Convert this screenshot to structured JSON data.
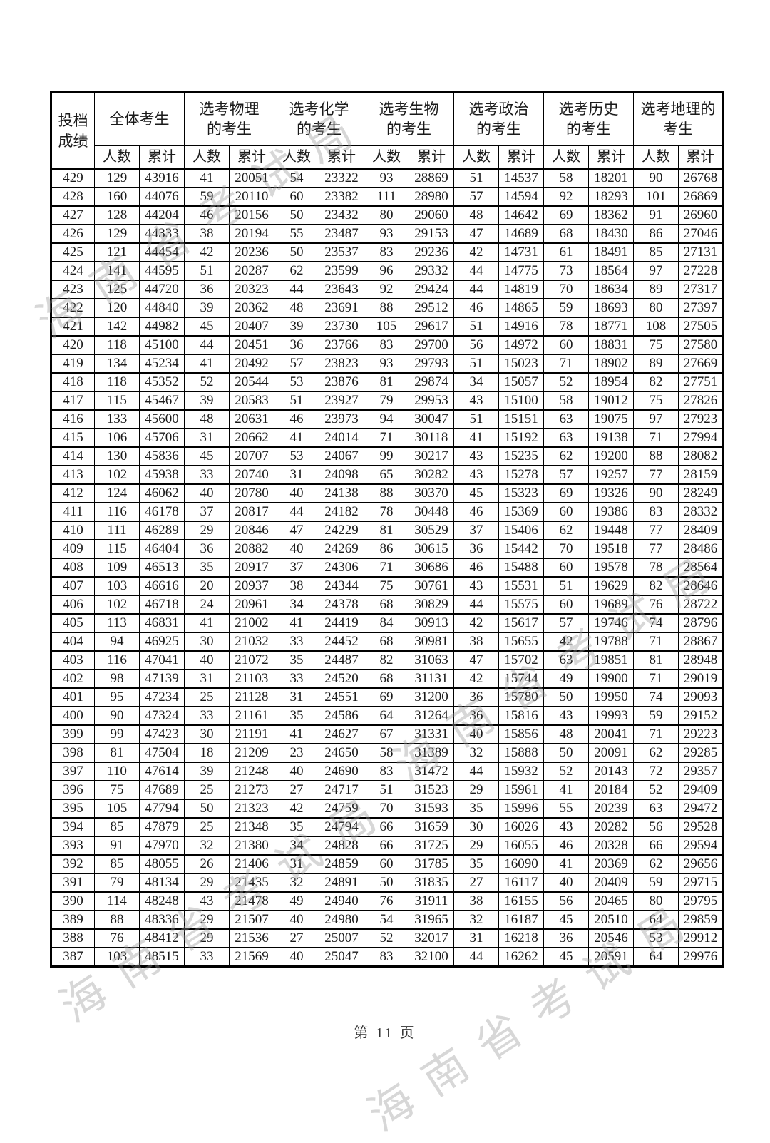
{
  "table": {
    "score_header": "投档\n成绩",
    "groups": [
      {
        "id": "all",
        "label": "全体考生"
      },
      {
        "id": "physics",
        "label": "选考物理\n的考生"
      },
      {
        "id": "chemistry",
        "label": "选考化学\n的考生"
      },
      {
        "id": "biology",
        "label": "选考生物\n的考生"
      },
      {
        "id": "politics",
        "label": "选考政治\n的考生"
      },
      {
        "id": "history",
        "label": "选考历史\n的考生"
      },
      {
        "id": "geography",
        "label": "选考地理的\n考生"
      }
    ],
    "sub_count": "人数",
    "sub_cumulative": "累计",
    "rows": [
      {
        "score": 429,
        "values": [
          129,
          43916,
          41,
          20051,
          54,
          23322,
          93,
          28869,
          51,
          14537,
          58,
          18201,
          90,
          26768
        ]
      },
      {
        "score": 428,
        "values": [
          160,
          44076,
          59,
          20110,
          60,
          23382,
          111,
          28980,
          57,
          14594,
          92,
          18293,
          101,
          26869
        ]
      },
      {
        "score": 427,
        "values": [
          128,
          44204,
          46,
          20156,
          50,
          23432,
          80,
          29060,
          48,
          14642,
          69,
          18362,
          91,
          26960
        ]
      },
      {
        "score": 426,
        "values": [
          129,
          44333,
          38,
          20194,
          55,
          23487,
          93,
          29153,
          47,
          14689,
          68,
          18430,
          86,
          27046
        ]
      },
      {
        "score": 425,
        "values": [
          121,
          44454,
          42,
          20236,
          50,
          23537,
          83,
          29236,
          42,
          14731,
          61,
          18491,
          85,
          27131
        ]
      },
      {
        "score": 424,
        "values": [
          141,
          44595,
          51,
          20287,
          62,
          23599,
          96,
          29332,
          44,
          14775,
          73,
          18564,
          97,
          27228
        ]
      },
      {
        "score": 423,
        "values": [
          125,
          44720,
          36,
          20323,
          44,
          23643,
          92,
          29424,
          44,
          14819,
          70,
          18634,
          89,
          27317
        ]
      },
      {
        "score": 422,
        "values": [
          120,
          44840,
          39,
          20362,
          48,
          23691,
          88,
          29512,
          46,
          14865,
          59,
          18693,
          80,
          27397
        ]
      },
      {
        "score": 421,
        "values": [
          142,
          44982,
          45,
          20407,
          39,
          23730,
          105,
          29617,
          51,
          14916,
          78,
          18771,
          108,
          27505
        ]
      },
      {
        "score": 420,
        "values": [
          118,
          45100,
          44,
          20451,
          36,
          23766,
          83,
          29700,
          56,
          14972,
          60,
          18831,
          75,
          27580
        ]
      },
      {
        "score": 419,
        "values": [
          134,
          45234,
          41,
          20492,
          57,
          23823,
          93,
          29793,
          51,
          15023,
          71,
          18902,
          89,
          27669
        ]
      },
      {
        "score": 418,
        "values": [
          118,
          45352,
          52,
          20544,
          53,
          23876,
          81,
          29874,
          34,
          15057,
          52,
          18954,
          82,
          27751
        ]
      },
      {
        "score": 417,
        "values": [
          115,
          45467,
          39,
          20583,
          51,
          23927,
          79,
          29953,
          43,
          15100,
          58,
          19012,
          75,
          27826
        ]
      },
      {
        "score": 416,
        "values": [
          133,
          45600,
          48,
          20631,
          46,
          23973,
          94,
          30047,
          51,
          15151,
          63,
          19075,
          97,
          27923
        ]
      },
      {
        "score": 415,
        "values": [
          106,
          45706,
          31,
          20662,
          41,
          24014,
          71,
          30118,
          41,
          15192,
          63,
          19138,
          71,
          27994
        ]
      },
      {
        "score": 414,
        "values": [
          130,
          45836,
          45,
          20707,
          53,
          24067,
          99,
          30217,
          43,
          15235,
          62,
          19200,
          88,
          28082
        ]
      },
      {
        "score": 413,
        "values": [
          102,
          45938,
          33,
          20740,
          31,
          24098,
          65,
          30282,
          43,
          15278,
          57,
          19257,
          77,
          28159
        ]
      },
      {
        "score": 412,
        "values": [
          124,
          46062,
          40,
          20780,
          40,
          24138,
          88,
          30370,
          45,
          15323,
          69,
          19326,
          90,
          28249
        ]
      },
      {
        "score": 411,
        "values": [
          116,
          46178,
          37,
          20817,
          44,
          24182,
          78,
          30448,
          46,
          15369,
          60,
          19386,
          83,
          28332
        ]
      },
      {
        "score": 410,
        "values": [
          111,
          46289,
          29,
          20846,
          47,
          24229,
          81,
          30529,
          37,
          15406,
          62,
          19448,
          77,
          28409
        ]
      },
      {
        "score": 409,
        "values": [
          115,
          46404,
          36,
          20882,
          40,
          24269,
          86,
          30615,
          36,
          15442,
          70,
          19518,
          77,
          28486
        ]
      },
      {
        "score": 408,
        "values": [
          109,
          46513,
          35,
          20917,
          37,
          24306,
          71,
          30686,
          46,
          15488,
          60,
          19578,
          78,
          28564
        ]
      },
      {
        "score": 407,
        "values": [
          103,
          46616,
          20,
          20937,
          38,
          24344,
          75,
          30761,
          43,
          15531,
          51,
          19629,
          82,
          28646
        ]
      },
      {
        "score": 406,
        "values": [
          102,
          46718,
          24,
          20961,
          34,
          24378,
          68,
          30829,
          44,
          15575,
          60,
          19689,
          76,
          28722
        ]
      },
      {
        "score": 405,
        "values": [
          113,
          46831,
          41,
          21002,
          41,
          24419,
          84,
          30913,
          42,
          15617,
          57,
          19746,
          74,
          28796
        ]
      },
      {
        "score": 404,
        "values": [
          94,
          46925,
          30,
          21032,
          33,
          24452,
          68,
          30981,
          38,
          15655,
          42,
          19788,
          71,
          28867
        ]
      },
      {
        "score": 403,
        "values": [
          116,
          47041,
          40,
          21072,
          35,
          24487,
          82,
          31063,
          47,
          15702,
          63,
          19851,
          81,
          28948
        ]
      },
      {
        "score": 402,
        "values": [
          98,
          47139,
          31,
          21103,
          33,
          24520,
          68,
          31131,
          42,
          15744,
          49,
          19900,
          71,
          29019
        ]
      },
      {
        "score": 401,
        "values": [
          95,
          47234,
          25,
          21128,
          31,
          24551,
          69,
          31200,
          36,
          15780,
          50,
          19950,
          74,
          29093
        ]
      },
      {
        "score": 400,
        "values": [
          90,
          47324,
          33,
          21161,
          35,
          24586,
          64,
          31264,
          36,
          15816,
          43,
          19993,
          59,
          29152
        ]
      },
      {
        "score": 399,
        "values": [
          99,
          47423,
          30,
          21191,
          41,
          24627,
          67,
          31331,
          40,
          15856,
          48,
          20041,
          71,
          29223
        ]
      },
      {
        "score": 398,
        "values": [
          81,
          47504,
          18,
          21209,
          23,
          24650,
          58,
          31389,
          32,
          15888,
          50,
          20091,
          62,
          29285
        ]
      },
      {
        "score": 397,
        "values": [
          110,
          47614,
          39,
          21248,
          40,
          24690,
          83,
          31472,
          44,
          15932,
          52,
          20143,
          72,
          29357
        ]
      },
      {
        "score": 396,
        "values": [
          75,
          47689,
          25,
          21273,
          27,
          24717,
          51,
          31523,
          29,
          15961,
          41,
          20184,
          52,
          29409
        ]
      },
      {
        "score": 395,
        "values": [
          105,
          47794,
          50,
          21323,
          42,
          24759,
          70,
          31593,
          35,
          15996,
          55,
          20239,
          63,
          29472
        ]
      },
      {
        "score": 394,
        "values": [
          85,
          47879,
          25,
          21348,
          35,
          24794,
          66,
          31659,
          30,
          16026,
          43,
          20282,
          56,
          29528
        ]
      },
      {
        "score": 393,
        "values": [
          91,
          47970,
          32,
          21380,
          34,
          24828,
          66,
          31725,
          29,
          16055,
          46,
          20328,
          66,
          29594
        ]
      },
      {
        "score": 392,
        "values": [
          85,
          48055,
          26,
          21406,
          31,
          24859,
          60,
          31785,
          35,
          16090,
          41,
          20369,
          62,
          29656
        ]
      },
      {
        "score": 391,
        "values": [
          79,
          48134,
          29,
          21435,
          32,
          24891,
          50,
          31835,
          27,
          16117,
          40,
          20409,
          59,
          29715
        ]
      },
      {
        "score": 390,
        "values": [
          114,
          48248,
          43,
          21478,
          49,
          24940,
          76,
          31911,
          38,
          16155,
          56,
          20465,
          80,
          29795
        ]
      },
      {
        "score": 389,
        "values": [
          88,
          48336,
          29,
          21507,
          40,
          24980,
          54,
          31965,
          32,
          16187,
          45,
          20510,
          64,
          29859
        ]
      },
      {
        "score": 388,
        "values": [
          76,
          48412,
          29,
          21536,
          27,
          25007,
          52,
          32017,
          31,
          16218,
          36,
          20546,
          53,
          29912
        ]
      },
      {
        "score": 387,
        "values": [
          103,
          48515,
          33,
          21569,
          40,
          25047,
          83,
          32100,
          44,
          16262,
          45,
          20591,
          64,
          29976
        ]
      }
    ]
  },
  "footer": {
    "page_label": "第  11  页"
  },
  "watermark": {
    "text": "海南省考试局"
  }
}
